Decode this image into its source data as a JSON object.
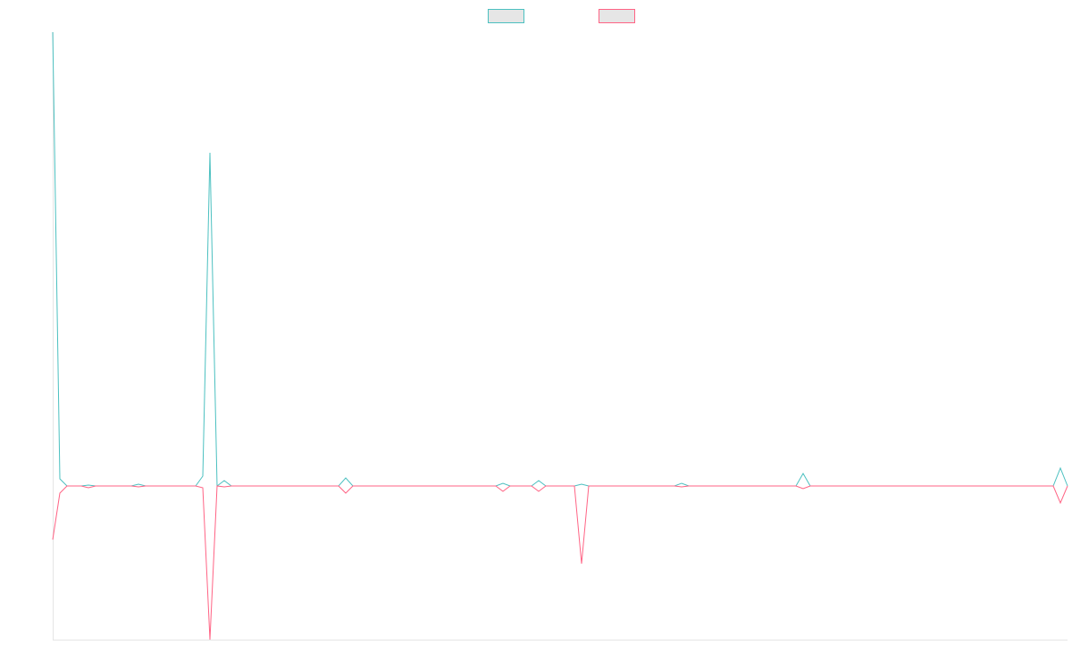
{
  "chart_data": {
    "type": "line",
    "ylim": [
      -17.2,
      50.8
    ],
    "series": [
      {
        "color": "#4bc0c0",
        "values": [
          50.8,
          0.8,
          0,
          0,
          0,
          0.1,
          0,
          0,
          0,
          0,
          0,
          0,
          0.2,
          0,
          0,
          0,
          0,
          0,
          0,
          0,
          0,
          1.1,
          37.3,
          0,
          0.6,
          0,
          0,
          0,
          0,
          0,
          0,
          0,
          0,
          0,
          0,
          0,
          0,
          0,
          0,
          0,
          0,
          0.9,
          0,
          0,
          0,
          0,
          0,
          0,
          0,
          0,
          0,
          0,
          0,
          0,
          0,
          0,
          0,
          0,
          0,
          0,
          0,
          0,
          0,
          0.3,
          0,
          0,
          0,
          0,
          0.6,
          0,
          0,
          0,
          0,
          0,
          0.2,
          0,
          0,
          0,
          0,
          0,
          0,
          0,
          0,
          0,
          0,
          0,
          0,
          0,
          0.3,
          0,
          0,
          0,
          0,
          0,
          0,
          0,
          0,
          0,
          0,
          0,
          0,
          0,
          0,
          0,
          0,
          1.4,
          0,
          0,
          0,
          0,
          0,
          0,
          0,
          0,
          0,
          0,
          0,
          0,
          0,
          0,
          0,
          0,
          0,
          0,
          0,
          0,
          0,
          0,
          0,
          0,
          0,
          0,
          0,
          0,
          0,
          0,
          0,
          0,
          0,
          0,
          0,
          2.0,
          0
        ]
      },
      {
        "color": "#ff6384",
        "values": [
          -6.0,
          -0.8,
          0,
          0,
          0,
          -0.2,
          0,
          0,
          0,
          0,
          0,
          0,
          -0.1,
          0,
          0,
          0,
          0,
          0,
          0,
          0,
          0,
          -0.2,
          -17.2,
          0,
          -0.1,
          0,
          0,
          0,
          0,
          0,
          0,
          0,
          0,
          0,
          0,
          0,
          0,
          0,
          0,
          0,
          0,
          -0.8,
          0,
          0,
          0,
          0,
          0,
          0,
          0,
          0,
          0,
          0,
          0,
          0,
          0,
          0,
          0,
          0,
          0,
          0,
          0,
          0,
          0,
          -0.6,
          0,
          0,
          0,
          0,
          -0.6,
          0,
          0,
          0,
          0,
          0,
          -8.7,
          0,
          0,
          0,
          0,
          0,
          0,
          0,
          0,
          0,
          0,
          0,
          0,
          0,
          -0.1,
          0,
          0,
          0,
          0,
          0,
          0,
          0,
          0,
          0,
          0,
          0,
          0,
          0,
          0,
          0,
          0,
          -0.3,
          0,
          0,
          0,
          0,
          0,
          0,
          0,
          0,
          0,
          0,
          0,
          0,
          0,
          0,
          0,
          0,
          0,
          0,
          0,
          0,
          0,
          0,
          0,
          0,
          0,
          0,
          0,
          0,
          0,
          0,
          0,
          0,
          0,
          0,
          0,
          -1.9,
          0
        ]
      }
    ]
  }
}
